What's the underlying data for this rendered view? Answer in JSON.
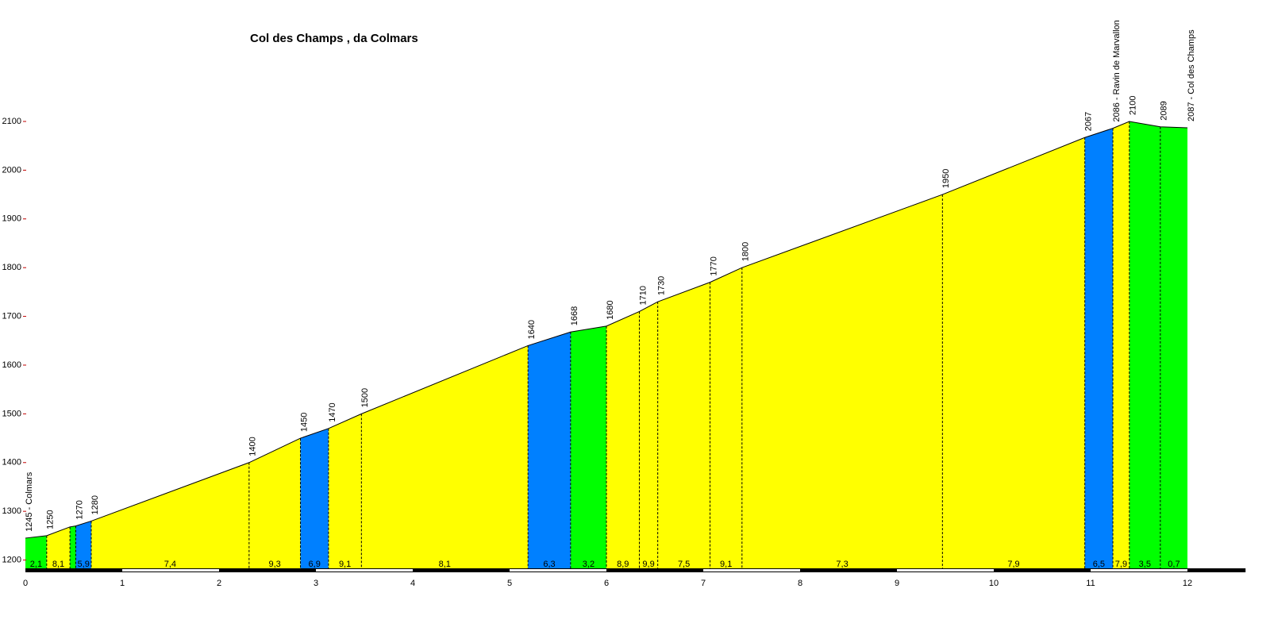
{
  "chart_data": {
    "type": "profile",
    "title": "Col des Champs , da Colmars",
    "x": [
      0,
      0.22,
      0.46,
      0.52,
      0.68,
      2.31,
      2.84,
      3.13,
      3.47,
      5.19,
      5.63,
      6.0,
      6.34,
      6.53,
      7.07,
      7.4,
      9.47,
      10.94,
      11.23,
      11.4,
      11.72,
      12.0
    ],
    "values": [
      1245,
      1250,
      1268,
      1270,
      1280,
      1400,
      1450,
      1470,
      1500,
      1640,
      1668,
      1680,
      1710,
      1730,
      1770,
      1800,
      1950,
      2067,
      2086,
      2100,
      2089,
      2087
    ],
    "value_labels": [
      "1245 - Colmars",
      "1250",
      null,
      "1270",
      "1280",
      "1400",
      "1450",
      "1470",
      "1500",
      "1640",
      "1668",
      "1680",
      "1710",
      "1730",
      "1770",
      "1800",
      "1950",
      "2067",
      "2086 - Ravin de Marvallon",
      "2100",
      "2089",
      "2087 - Col des Champs"
    ],
    "segments": {
      "values": [
        2.1,
        8.1,
        null,
        5.9,
        7.4,
        9.3,
        6.9,
        9.1,
        8.1,
        6.3,
        3.2,
        8.9,
        9.9,
        7.5,
        9.1,
        7.3,
        7.9,
        6.5,
        7.9,
        3.5,
        0.7
      ],
      "value_labels": [
        "2,1",
        "8,1",
        null,
        "5,9",
        "7,4",
        "9,3",
        "6,9",
        "9,1",
        "8,1",
        "6,3",
        "3,2",
        "8,9",
        "9,9",
        "7,5",
        "9,1",
        "7,3",
        "7,9",
        "6,5",
        "7,9",
        "3,5",
        "0,7"
      ],
      "colors": [
        "#00ff00",
        "#ffff00",
        "#00ff00",
        "#0080ff",
        "#ffff00",
        "#ffff00",
        "#0080ff",
        "#ffff00",
        "#ffff00",
        "#0080ff",
        "#00ff00",
        "#ffff00",
        "#ffff00",
        "#ffff00",
        "#ffff00",
        "#ffff00",
        "#ffff00",
        "#0080ff",
        "#ffff00",
        "#00ff00",
        "#00ff00"
      ]
    },
    "xlim": [
      0,
      12.6
    ],
    "ylim": [
      1183,
      2100
    ],
    "xticks": [
      0,
      1,
      2,
      3,
      4,
      5,
      6,
      7,
      8,
      9,
      10,
      11,
      12
    ],
    "yticks": [
      1200,
      1300,
      1400,
      1500,
      1600,
      1700,
      1800,
      1900,
      2000,
      2100
    ]
  }
}
